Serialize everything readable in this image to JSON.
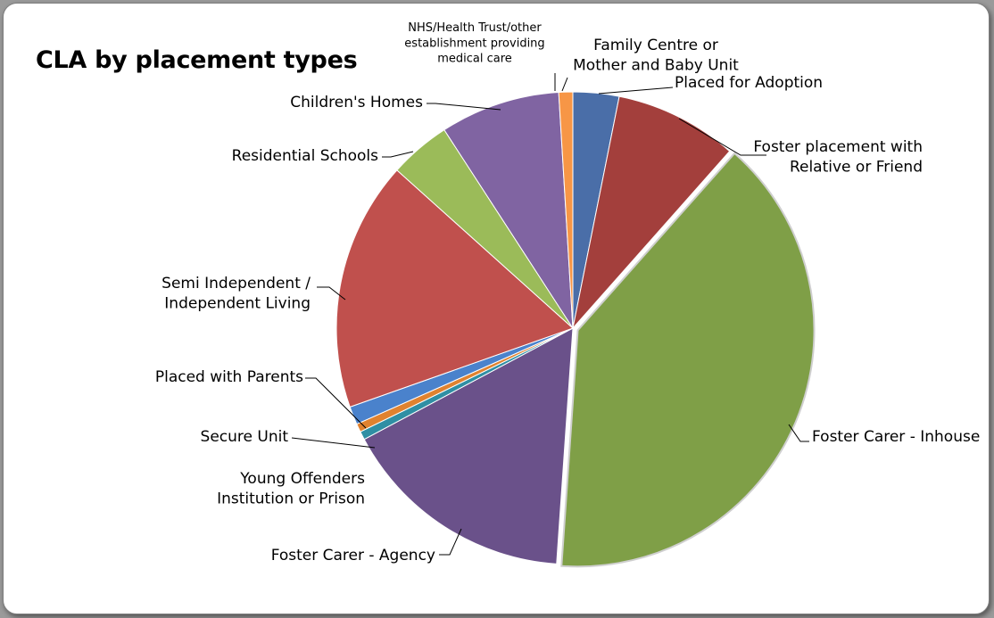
{
  "chart_data": {
    "type": "pie",
    "title": "CLA by placement types",
    "slices": [
      {
        "label": "Placed for Adoption",
        "value": 3.3,
        "color": "#4a6ea8"
      },
      {
        "label": "Foster placement with Relative or Friend",
        "value": 8.8,
        "color": "#a33f3c"
      },
      {
        "label": "Foster Carer - Inhouse",
        "value": 41.5,
        "color": "#7f9f47"
      },
      {
        "label": "Foster Carer - Agency",
        "value": 16.9,
        "color": "#6a518a"
      },
      {
        "label": "Young Offenders Institution or Prison",
        "value": 0.6,
        "color": "#2f8fa4"
      },
      {
        "label": "Secure Unit",
        "value": 0.6,
        "color": "#e0822f"
      },
      {
        "label": "Placed with Parents",
        "value": 1.3,
        "color": "#4a82cc"
      },
      {
        "label": "Semi Independent / Independent Living",
        "value": 17.9,
        "color": "#c0504d"
      },
      {
        "label": "Residential Schools",
        "value": 4.4,
        "color": "#9bbb59"
      },
      {
        "label": "Children's Homes",
        "value": 8.6,
        "color": "#8064a2"
      },
      {
        "label": "NHS/Health Trust/other establishment providing medical care",
        "value": 1.0,
        "color": "#f79646"
      },
      {
        "label": "Family Centre or Mother and Baby Unit",
        "value": 0.0,
        "color": "#4bacc6"
      }
    ]
  }
}
